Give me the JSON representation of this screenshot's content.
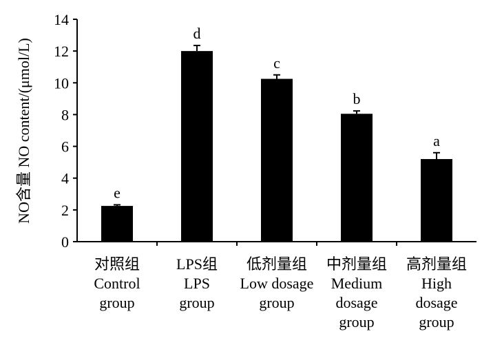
{
  "chart_data": {
    "type": "bar",
    "title": "",
    "xlabel": "",
    "ylabel": "NO含量 NO content/(μmol/L)",
    "ylim": [
      0,
      14
    ],
    "yticks": [
      0,
      2,
      4,
      6,
      8,
      10,
      12,
      14
    ],
    "grid": false,
    "categories": [
      [
        "对照组",
        "Control",
        "group"
      ],
      [
        "LPS组",
        "LPS",
        "group"
      ],
      [
        "低剂量组",
        "Low dosage",
        "group"
      ],
      [
        "中剂量组",
        "Medium",
        "dosage",
        "group"
      ],
      [
        "高剂量组",
        "High",
        "dosage",
        "group"
      ]
    ],
    "values": [
      2.25,
      12.0,
      10.25,
      8.05,
      5.2
    ],
    "errors": [
      0.07,
      0.35,
      0.25,
      0.18,
      0.4
    ],
    "significance": [
      "e",
      "d",
      "c",
      "b",
      "a"
    ],
    "bar_color": "#000000"
  }
}
